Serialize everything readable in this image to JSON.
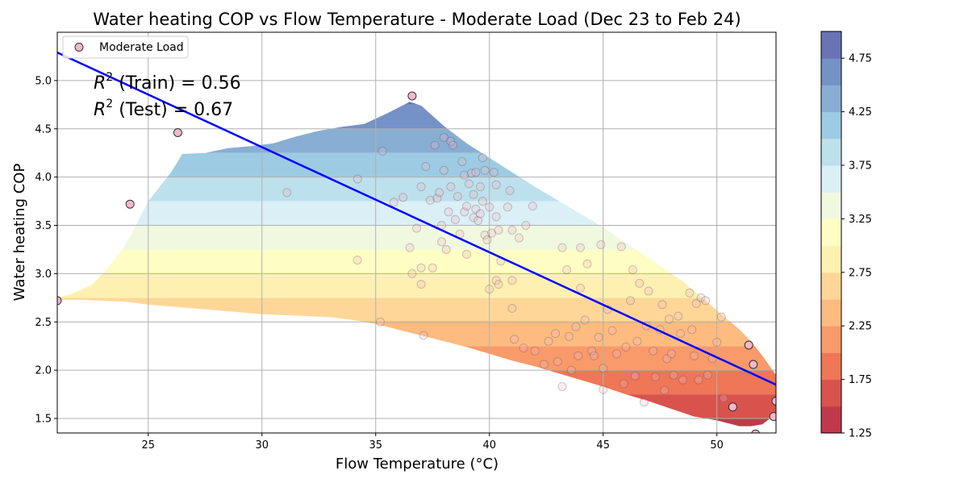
{
  "chart_data": {
    "type": "scatter",
    "title": "Water heating COP vs Flow Temperature - Moderate Load (Dec 23 to Feb 24)",
    "xlabel": "Flow Temperature (°C)",
    "ylabel": "Water heating COP",
    "xlim": [
      21.0,
      52.6
    ],
    "ylim": [
      1.35,
      5.5
    ],
    "xticks": [
      25,
      30,
      35,
      40,
      45,
      50
    ],
    "yticks": [
      1.5,
      2.0,
      2.5,
      3.0,
      3.5,
      4.0,
      4.5,
      5.0
    ],
    "grid": true,
    "legend": {
      "position": "top-left",
      "entries": [
        "Moderate Load"
      ]
    },
    "annotations": [
      {
        "base": "R",
        "sup": "2",
        "rest": " (Train) = 0.56"
      },
      {
        "base": "R",
        "sup": "2",
        "rest": " (Test) = 0.67"
      }
    ],
    "regression_line": {
      "x": [
        21.0,
        52.6
      ],
      "y": [
        5.29,
        1.85
      ],
      "color": "#0000ff"
    },
    "colorbar": {
      "ticks": [
        1.25,
        1.75,
        2.25,
        2.75,
        3.25,
        3.75,
        4.25,
        4.75
      ],
      "tick_labels": [
        "1.25",
        "1.75",
        "2.25",
        "2.75",
        "3.25",
        "3.75",
        "4.25",
        "4.75"
      ],
      "range": [
        1.25,
        5.0
      ],
      "colors": [
        "#c0394b",
        "#d9534d",
        "#ef7656",
        "#f99a6a",
        "#fdbb7f",
        "#fed798",
        "#fef0b1",
        "#fefdc4",
        "#f0f9e0",
        "#dbeff6",
        "#bde0ed",
        "#9ccbe3",
        "#88aed4",
        "#7592c6",
        "#6a74b5"
      ]
    },
    "region": {
      "upper": [
        [
          21.0,
          2.75
        ],
        [
          21.5,
          2.78
        ],
        [
          22.5,
          2.88
        ],
        [
          23.0,
          3.0
        ],
        [
          23.5,
          3.14
        ],
        [
          24.0,
          3.3
        ],
        [
          24.5,
          3.52
        ],
        [
          25.0,
          3.75
        ],
        [
          25.5,
          3.9
        ],
        [
          26.0,
          4.05
        ],
        [
          26.5,
          4.24
        ],
        [
          27.5,
          4.25
        ],
        [
          28.5,
          4.3
        ],
        [
          29.5,
          4.32
        ],
        [
          30.5,
          4.35
        ],
        [
          31.5,
          4.42
        ],
        [
          32.5,
          4.48
        ],
        [
          33.5,
          4.52
        ],
        [
          34.5,
          4.55
        ],
        [
          35.5,
          4.66
        ],
        [
          36.5,
          4.78
        ],
        [
          37.0,
          4.74
        ],
        [
          38.0,
          4.53
        ],
        [
          39.0,
          4.35
        ],
        [
          40.0,
          4.2
        ],
        [
          41.0,
          4.05
        ],
        [
          42.0,
          3.9
        ],
        [
          43.0,
          3.76
        ],
        [
          44.0,
          3.62
        ],
        [
          45.0,
          3.48
        ],
        [
          46.0,
          3.32
        ],
        [
          47.0,
          3.16
        ],
        [
          48.0,
          3.0
        ],
        [
          48.5,
          2.92
        ],
        [
          49.0,
          2.82
        ],
        [
          50.0,
          2.62
        ],
        [
          51.0,
          2.42
        ],
        [
          51.5,
          2.3
        ],
        [
          52.0,
          2.15
        ],
        [
          52.6,
          1.95
        ]
      ],
      "lower": [
        [
          52.6,
          1.55
        ],
        [
          52.0,
          1.44
        ],
        [
          51.5,
          1.42
        ],
        [
          51.0,
          1.42
        ],
        [
          50.0,
          1.48
        ],
        [
          49.0,
          1.52
        ],
        [
          48.0,
          1.6
        ],
        [
          47.0,
          1.68
        ],
        [
          46.0,
          1.75
        ],
        [
          45.0,
          1.83
        ],
        [
          44.0,
          1.9
        ],
        [
          43.0,
          1.97
        ],
        [
          42.0,
          2.04
        ],
        [
          41.0,
          2.1
        ],
        [
          40.0,
          2.17
        ],
        [
          39.0,
          2.24
        ],
        [
          38.0,
          2.3
        ],
        [
          37.0,
          2.36
        ],
        [
          36.0,
          2.42
        ],
        [
          35.0,
          2.48
        ],
        [
          34.0,
          2.52
        ],
        [
          33.0,
          2.55
        ],
        [
          32.0,
          2.56
        ],
        [
          31.0,
          2.57
        ],
        [
          30.0,
          2.58
        ],
        [
          29.0,
          2.6
        ],
        [
          28.0,
          2.62
        ],
        [
          27.0,
          2.64
        ],
        [
          26.0,
          2.66
        ],
        [
          25.0,
          2.68
        ],
        [
          24.0,
          2.71
        ],
        [
          23.0,
          2.72
        ],
        [
          22.0,
          2.73
        ],
        [
          21.0,
          2.73
        ]
      ]
    },
    "series": [
      {
        "name": "Moderate Load",
        "points": [
          [
            21.0,
            2.72
          ],
          [
            24.2,
            3.72
          ],
          [
            26.3,
            4.46
          ],
          [
            31.1,
            3.84
          ],
          [
            34.2,
            3.98
          ],
          [
            34.2,
            3.14
          ],
          [
            35.2,
            2.5
          ],
          [
            35.3,
            4.27
          ],
          [
            35.8,
            3.74
          ],
          [
            36.2,
            3.79
          ],
          [
            36.5,
            3.27
          ],
          [
            36.6,
            4.84
          ],
          [
            36.6,
            3.0
          ],
          [
            36.8,
            3.47
          ],
          [
            37.0,
            3.9
          ],
          [
            37.0,
            3.06
          ],
          [
            37.0,
            2.89
          ],
          [
            37.1,
            2.36
          ],
          [
            37.2,
            4.11
          ],
          [
            37.4,
            3.76
          ],
          [
            37.5,
            3.06
          ],
          [
            37.6,
            4.33
          ],
          [
            37.7,
            3.78
          ],
          [
            37.8,
            3.84
          ],
          [
            37.9,
            3.5
          ],
          [
            37.9,
            3.33
          ],
          [
            38.0,
            4.41
          ],
          [
            38.0,
            4.07
          ],
          [
            38.1,
            3.25
          ],
          [
            38.2,
            3.64
          ],
          [
            38.3,
            4.37
          ],
          [
            38.3,
            3.9
          ],
          [
            38.4,
            4.33
          ],
          [
            38.5,
            3.56
          ],
          [
            38.6,
            3.8
          ],
          [
            38.7,
            3.41
          ],
          [
            38.8,
            4.16
          ],
          [
            38.9,
            3.64
          ],
          [
            38.9,
            4.02
          ],
          [
            39.0,
            3.7
          ],
          [
            39.0,
            3.2
          ],
          [
            39.1,
            3.93
          ],
          [
            39.2,
            4.04
          ],
          [
            39.3,
            3.82
          ],
          [
            39.3,
            3.58
          ],
          [
            39.4,
            4.05
          ],
          [
            39.4,
            3.67
          ],
          [
            39.5,
            3.55
          ],
          [
            39.6,
            3.9
          ],
          [
            39.6,
            3.62
          ],
          [
            39.7,
            4.2
          ],
          [
            39.7,
            3.75
          ],
          [
            39.8,
            3.4
          ],
          [
            39.8,
            4.07
          ],
          [
            39.9,
            3.35
          ],
          [
            40.0,
            3.69
          ],
          [
            40.0,
            2.84
          ],
          [
            40.1,
            3.42
          ],
          [
            40.2,
            4.05
          ],
          [
            40.3,
            3.92
          ],
          [
            40.3,
            3.59
          ],
          [
            40.3,
            2.93
          ],
          [
            40.4,
            3.45
          ],
          [
            40.4,
            2.89
          ],
          [
            40.5,
            3.13
          ],
          [
            40.8,
            3.69
          ],
          [
            40.9,
            3.86
          ],
          [
            41.0,
            2.93
          ],
          [
            41.0,
            3.45
          ],
          [
            41.0,
            2.64
          ],
          [
            41.1,
            2.32
          ],
          [
            41.3,
            3.37
          ],
          [
            41.5,
            2.23
          ],
          [
            41.6,
            3.5
          ],
          [
            41.9,
            3.7
          ],
          [
            42.0,
            2.2
          ],
          [
            42.4,
            2.06
          ],
          [
            42.6,
            2.3
          ],
          [
            42.9,
            2.38
          ],
          [
            43.0,
            2.09
          ],
          [
            43.2,
            3.27
          ],
          [
            43.2,
            1.83
          ],
          [
            43.4,
            3.04
          ],
          [
            43.5,
            2.35
          ],
          [
            43.6,
            2.0
          ],
          [
            43.8,
            2.45
          ],
          [
            43.9,
            2.15
          ],
          [
            44.0,
            3.27
          ],
          [
            44.0,
            2.85
          ],
          [
            44.2,
            2.52
          ],
          [
            44.3,
            3.1
          ],
          [
            44.5,
            2.2
          ],
          [
            44.6,
            2.15
          ],
          [
            44.8,
            2.34
          ],
          [
            44.9,
            3.3
          ],
          [
            45.0,
            1.8
          ],
          [
            45.0,
            2.02
          ],
          [
            45.2,
            2.63
          ],
          [
            45.4,
            2.41
          ],
          [
            45.6,
            2.17
          ],
          [
            45.8,
            3.28
          ],
          [
            45.9,
            1.86
          ],
          [
            46.0,
            2.24
          ],
          [
            46.2,
            2.72
          ],
          [
            46.3,
            3.04
          ],
          [
            46.4,
            1.94
          ],
          [
            46.5,
            2.3
          ],
          [
            46.6,
            2.9
          ],
          [
            46.8,
            1.67
          ],
          [
            46.9,
            2.46
          ],
          [
            47.0,
            2.82
          ],
          [
            47.2,
            2.2
          ],
          [
            47.3,
            1.93
          ],
          [
            47.5,
            2.42
          ],
          [
            47.6,
            2.68
          ],
          [
            47.7,
            1.79
          ],
          [
            47.8,
            2.12
          ],
          [
            47.9,
            2.53
          ],
          [
            48.0,
            2.17
          ],
          [
            48.1,
            1.95
          ],
          [
            48.3,
            2.56
          ],
          [
            48.4,
            2.38
          ],
          [
            48.5,
            1.9
          ],
          [
            48.8,
            2.8
          ],
          [
            48.9,
            2.42
          ],
          [
            49.0,
            2.15
          ],
          [
            49.1,
            2.69
          ],
          [
            49.2,
            1.9
          ],
          [
            49.3,
            2.75
          ],
          [
            49.5,
            2.72
          ],
          [
            49.6,
            1.95
          ],
          [
            49.8,
            2.12
          ],
          [
            50.0,
            2.29
          ],
          [
            50.2,
            2.55
          ],
          [
            50.3,
            1.71
          ],
          [
            50.7,
            1.62
          ],
          [
            51.4,
            2.26
          ],
          [
            51.6,
            2.06
          ],
          [
            51.7,
            1.34
          ],
          [
            52.6,
            1.68
          ],
          [
            52.5,
            1.52
          ]
        ]
      }
    ]
  }
}
